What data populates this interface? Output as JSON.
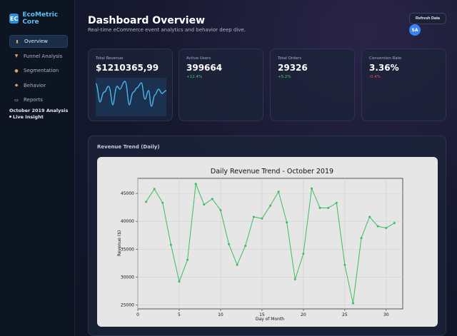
{
  "brand": {
    "logo": "EC",
    "name": "EcoMetric Core"
  },
  "nav": [
    {
      "label": "Overview",
      "icon": "chart-icon",
      "active": true
    },
    {
      "label": "Funnel Analysis",
      "icon": "funnel-icon",
      "active": false
    },
    {
      "label": "Segmentation",
      "icon": "people-icon",
      "active": false
    },
    {
      "label": "Behavior",
      "icon": "behavior-icon",
      "active": false
    },
    {
      "label": "Reports",
      "icon": "document-icon",
      "active": false
    }
  ],
  "side_note": {
    "line1": "October 2019 Analysis",
    "line2": "Live Insight"
  },
  "header": {
    "title": "Dashboard Overview",
    "subtitle": "Real-time eCommerce event analytics and behavior deep dive.",
    "refresh_label": "Refresh Data",
    "avatar_initials": "SA"
  },
  "kpis": [
    {
      "label": "Total Revenue",
      "value": "$1210365,99",
      "change": "",
      "trend": "none"
    },
    {
      "label": "Active Users",
      "value": "399664",
      "change": "+12.4%",
      "trend": "up"
    },
    {
      "label": "Total Orders",
      "value": "29326",
      "change": "+5.2%",
      "trend": "up"
    },
    {
      "label": "Conversion Rate",
      "value": "3.36%",
      "change": "-0.4%",
      "trend": "down"
    }
  ],
  "colors": {
    "accent": "#5cc0f2",
    "positive": "#3ecf6e",
    "negative": "#ef4b5a",
    "line": "#3dbb63"
  },
  "panel": {
    "title": "Revenue Trend (Daily)"
  },
  "chart_data": {
    "type": "line",
    "title": "Daily Revenue Trend - October 2019",
    "xlabel": "Day of Month",
    "ylabel": "Revenue ($)",
    "x": [
      1,
      2,
      3,
      4,
      5,
      6,
      7,
      8,
      9,
      10,
      11,
      12,
      13,
      14,
      15,
      16,
      17,
      18,
      19,
      20,
      21,
      22,
      23,
      24,
      25,
      26,
      27,
      28,
      29,
      30,
      31
    ],
    "values": [
      43500,
      45800,
      43300,
      35800,
      29200,
      33100,
      46700,
      43000,
      44000,
      42000,
      35900,
      32200,
      35600,
      40800,
      40500,
      42800,
      45300,
      39800,
      29600,
      34200,
      45900,
      42400,
      42400,
      43300,
      32200,
      25300,
      37000,
      40800,
      39100,
      38800,
      39700
    ],
    "xlim": [
      0,
      32
    ],
    "ylim": [
      24300,
      47700
    ],
    "xticks": [
      0,
      5,
      10,
      15,
      20,
      25,
      30
    ],
    "xtick_labels": [
      "0",
      "5",
      "10",
      "15",
      "20",
      "25",
      "30"
    ],
    "yticks": [
      25000,
      30000,
      35000,
      40000,
      45000
    ],
    "ytick_labels": [
      "25000",
      "30000",
      "35000",
      "40000",
      "45000"
    ],
    "grid": true
  }
}
